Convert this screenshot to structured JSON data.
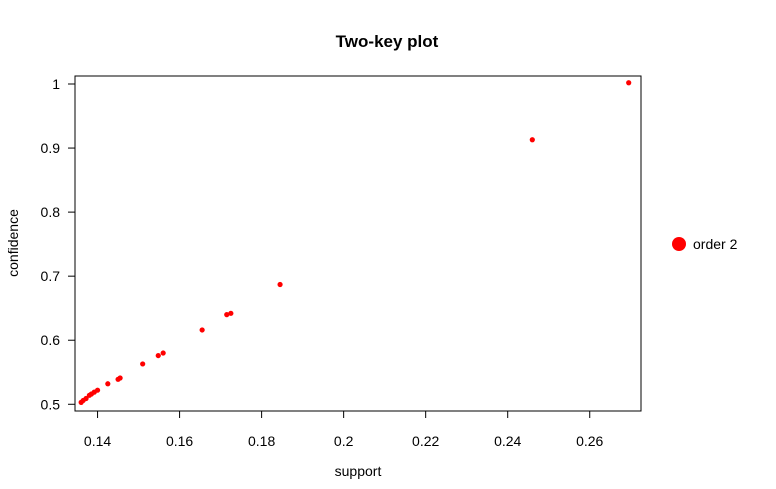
{
  "chart_data": {
    "type": "scatter",
    "title": "Two-key plot",
    "xlabel": "support",
    "ylabel": "confidence",
    "xlim": [
      0.1345,
      0.2725
    ],
    "ylim": [
      0.4895,
      1.0125
    ],
    "x_ticks": [
      0.14,
      0.16,
      0.18,
      0.2,
      0.22,
      0.24,
      0.26
    ],
    "x_tick_labels": [
      "0.14",
      "0.16",
      "0.18",
      "0.2",
      "0.22",
      "0.24",
      "0.26"
    ],
    "y_ticks": [
      0.5,
      0.6,
      0.7,
      0.8,
      0.9,
      1.0
    ],
    "y_tick_labels": [
      "0.5",
      "0.6",
      "0.7",
      "0.8",
      "0.9",
      "1"
    ],
    "grid": false,
    "legend_position": "right",
    "series": [
      {
        "name": "order 2",
        "color": "#ff0000",
        "points": [
          {
            "x": 0.136,
            "y": 0.503
          },
          {
            "x": 0.1365,
            "y": 0.506
          },
          {
            "x": 0.1372,
            "y": 0.509
          },
          {
            "x": 0.138,
            "y": 0.514
          },
          {
            "x": 0.1385,
            "y": 0.516
          },
          {
            "x": 0.1392,
            "y": 0.519
          },
          {
            "x": 0.14,
            "y": 0.522
          },
          {
            "x": 0.1425,
            "y": 0.532
          },
          {
            "x": 0.145,
            "y": 0.539
          },
          {
            "x": 0.1455,
            "y": 0.541
          },
          {
            "x": 0.151,
            "y": 0.563
          },
          {
            "x": 0.1548,
            "y": 0.576
          },
          {
            "x": 0.156,
            "y": 0.58
          },
          {
            "x": 0.1655,
            "y": 0.616
          },
          {
            "x": 0.1715,
            "y": 0.64
          },
          {
            "x": 0.1725,
            "y": 0.642
          },
          {
            "x": 0.1845,
            "y": 0.687
          },
          {
            "x": 0.246,
            "y": 0.913
          },
          {
            "x": 0.2695,
            "y": 1.002
          }
        ]
      }
    ]
  }
}
